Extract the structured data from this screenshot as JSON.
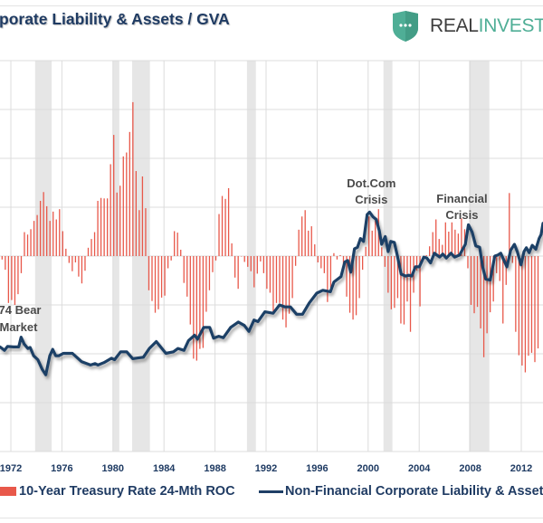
{
  "title": "porate Liability & Assets / GVA",
  "logo": {
    "icon": "shield-dots-icon",
    "word1": "REAL",
    "word2": "INVEST",
    "colors": {
      "shield": "#4fae96",
      "word1": "#3d3d3d",
      "word2": "#4fae96"
    }
  },
  "legend": {
    "bars_label": "10-Year Treasury Rate 24-Mth ROC",
    "line_label": "Non-Financial Corporate Liability & Assets /"
  },
  "chart_data": {
    "type": "bar+line",
    "title": "",
    "xlabel": "",
    "ylabel": "",
    "xlim": [
      1971.15,
      2013.7
    ],
    "ylim": [
      -4,
      4
    ],
    "y_tick_labels_shown": false,
    "grid": true,
    "legend_placement": "bottom",
    "x_ticks": [
      "1972",
      "1976",
      "1980",
      "1984",
      "1988",
      "1992",
      "1996",
      "2000",
      "2004",
      "2008",
      "2012"
    ],
    "colors": {
      "bars": "#e8584a",
      "line": "#1f3f66",
      "recession": "#e6e6e6",
      "grid": "#dcdcdc"
    },
    "recession_shading": [
      [
        1973.9,
        1975.2
      ],
      [
        1980.0,
        1980.5
      ],
      [
        1981.5,
        1982.9
      ],
      [
        1990.5,
        1991.2
      ],
      [
        2001.2,
        2001.9
      ],
      [
        2007.9,
        2009.5
      ]
    ],
    "annotations": [
      {
        "lines": [
          "'74 Bear",
          "Market"
        ],
        "year": 1972.6
      },
      {
        "lines": [
          "Dot.Com",
          "Crisis"
        ],
        "year": 2000.25
      },
      {
        "lines": [
          "Financial",
          "Crisis"
        ],
        "year": 2007.35
      }
    ],
    "series": [
      {
        "name": "10-Year Treasury Rate 24-Mth ROC",
        "type": "bar",
        "first_period": "1971-Q2",
        "frequency": "quarterly",
        "values": [
          -0.07,
          -0.28,
          -0.96,
          -0.9,
          -1.0,
          -0.78,
          -0.35,
          0.49,
          0.44,
          0.55,
          0.72,
          0.84,
          1.13,
          1.31,
          1.02,
          0.72,
          0.91,
          0.75,
          0.96,
          0.51,
          0.15,
          -0.14,
          -0.31,
          -0.13,
          -0.42,
          -0.56,
          -0.3,
          0.17,
          0.35,
          0.49,
          1.13,
          1.19,
          1.18,
          1.18,
          1.88,
          2.48,
          1.3,
          1.44,
          2.04,
          2.12,
          2.54,
          3.15,
          1.74,
          0.94,
          1.63,
          0.98,
          -0.7,
          -0.92,
          -1.16,
          -1.09,
          -0.85,
          -0.81,
          -0.25,
          -0.09,
          0.51,
          0.48,
          0.13,
          -0.55,
          -0.83,
          -1.4,
          -2.1,
          -2.14,
          -1.9,
          -1.88,
          -1.14,
          -0.7,
          -0.33,
          -0.09,
          0.86,
          1.23,
          1.17,
          1.39,
          0.26,
          -0.44,
          -0.67,
          0,
          -0.12,
          -0.22,
          -0.31,
          -0.64,
          -0.36,
          -0.11,
          -0.35,
          -0.67,
          -0.75,
          -1.19,
          -0.96,
          -0.96,
          -1.3,
          -1.46,
          -1.18,
          -0.86,
          -0.2,
          0.54,
          0.81,
          0.94,
          0.52,
          0.61,
          0.24,
          -0.13,
          -0.25,
          -0.35,
          -0.94,
          -0.65,
          0.06,
          -0.07,
          0.02,
          -0.19,
          -0.83,
          -1.16,
          -1.3,
          -1.21,
          -0.86,
          -0.28,
          0.19,
          0.81,
          0.52,
          0.73,
          0.96,
          0.18,
          -0.22,
          -0.75,
          -1.09,
          -1.06,
          -0.86,
          -1.38,
          -1.4,
          -0.93,
          -1.55,
          -0.75,
          -0.3,
          -1.03,
          -0.07,
          0.02,
          0.2,
          0.49,
          0.75,
          0.35,
          0.23,
          0.69,
          0.5,
          0.69,
          0.54,
          0.46,
          0.77,
          0.55,
          -0.25,
          -1.0,
          -1.17,
          -1.04,
          -1.48,
          -2.07,
          -1.58,
          -1.15,
          -0.93,
          -0.35,
          -0.51,
          -1.38,
          -0.59,
          1.29,
          -0.14,
          -1.55,
          -2.03,
          -2.24,
          -2.38,
          -2.04,
          -1.98,
          -2.17,
          -1.89
        ]
      },
      {
        "name": "Non-Financial Corporate Liability & Assets /",
        "type": "line",
        "points": [
          [
            1971.15,
            -1.86
          ],
          [
            1971.5,
            -1.93
          ],
          [
            1971.74,
            -1.85
          ],
          [
            1972.21,
            -1.86
          ],
          [
            1972.62,
            -1.86
          ],
          [
            1972.8,
            -1.66
          ],
          [
            1973.04,
            -1.8
          ],
          [
            1973.33,
            -1.89
          ],
          [
            1973.51,
            -1.87
          ],
          [
            1973.79,
            -2.04
          ],
          [
            1974.11,
            -2.12
          ],
          [
            1974.46,
            -2.32
          ],
          [
            1974.74,
            -2.43
          ],
          [
            1975.05,
            -2.04
          ],
          [
            1975.28,
            -1.91
          ],
          [
            1975.52,
            -2.04
          ],
          [
            1975.76,
            -2.04
          ],
          [
            1976.11,
            -1.99
          ],
          [
            1976.82,
            -1.99
          ],
          [
            1977.53,
            -2.16
          ],
          [
            1978.24,
            -2.23
          ],
          [
            1978.6,
            -2.2
          ],
          [
            1978.83,
            -2.23
          ],
          [
            1979.3,
            -2.18
          ],
          [
            1979.89,
            -2.09
          ],
          [
            1980.13,
            -2.12
          ],
          [
            1980.6,
            -1.96
          ],
          [
            1981.08,
            -1.96
          ],
          [
            1981.55,
            -2.1
          ],
          [
            1981.79,
            -2.09
          ],
          [
            1982.38,
            -2.07
          ],
          [
            1982.85,
            -1.89
          ],
          [
            1983.4,
            -1.75
          ],
          [
            1984.15,
            -1.99
          ],
          [
            1984.74,
            -1.96
          ],
          [
            1985.1,
            -1.89
          ],
          [
            1985.57,
            -1.93
          ],
          [
            1985.92,
            -1.73
          ],
          [
            1986.4,
            -1.62
          ],
          [
            1986.63,
            -1.7
          ],
          [
            1987.11,
            -1.46
          ],
          [
            1987.58,
            -1.46
          ],
          [
            1987.89,
            -1.68
          ],
          [
            1988.29,
            -1.64
          ],
          [
            1988.65,
            -1.67
          ],
          [
            1989.23,
            -1.46
          ],
          [
            1989.82,
            -1.35
          ],
          [
            1990.3,
            -1.42
          ],
          [
            1990.65,
            -1.54
          ],
          [
            1991.06,
            -1.31
          ],
          [
            1991.36,
            -1.34
          ],
          [
            1991.91,
            -1.14
          ],
          [
            1992.55,
            -1.17
          ],
          [
            1993.06,
            -1.0
          ],
          [
            1993.49,
            -1.04
          ],
          [
            1993.91,
            -1.04
          ],
          [
            1994.39,
            -1.19
          ],
          [
            1994.86,
            -1.19
          ],
          [
            1995.38,
            -0.96
          ],
          [
            1995.97,
            -0.76
          ],
          [
            1996.45,
            -0.7
          ],
          [
            1997.04,
            -0.73
          ],
          [
            1997.32,
            -0.53
          ],
          [
            1997.87,
            -0.42
          ],
          [
            1998.17,
            -0.12
          ],
          [
            1998.4,
            -0.09
          ],
          [
            1998.64,
            -0.33
          ],
          [
            1998.93,
            0.15
          ],
          [
            1999.16,
            0.18
          ],
          [
            1999.4,
            0.36
          ],
          [
            1999.64,
            0.3
          ],
          [
            1999.92,
            0.85
          ],
          [
            2000.11,
            0.9
          ],
          [
            2000.39,
            0.8
          ],
          [
            2000.63,
            0.75
          ],
          [
            2000.87,
            0.52
          ],
          [
            2001.06,
            0.24
          ],
          [
            2001.34,
            0.4
          ],
          [
            2001.57,
            0.09
          ],
          [
            2001.77,
            0.3
          ],
          [
            2002.05,
            0.28
          ],
          [
            2002.28,
            0.02
          ],
          [
            2002.59,
            -0.37
          ],
          [
            2002.94,
            -0.41
          ],
          [
            2003.18,
            -0.39
          ],
          [
            2003.42,
            -0.41
          ],
          [
            2003.7,
            -0.22
          ],
          [
            2004.01,
            -0.22
          ],
          [
            2004.36,
            -0.02
          ],
          [
            2004.6,
            -0.04
          ],
          [
            2004.89,
            -0.14
          ],
          [
            2005.19,
            0.06
          ],
          [
            2005.6,
            -0.02
          ],
          [
            2005.85,
            0.04
          ],
          [
            2006.13,
            -0.04
          ],
          [
            2006.49,
            0.06
          ],
          [
            2006.77,
            -0.02
          ],
          [
            2007.16,
            0.02
          ],
          [
            2007.62,
            0.24
          ],
          [
            2007.86,
            0.64
          ],
          [
            2008.15,
            0.49
          ],
          [
            2008.43,
            0.21
          ],
          [
            2008.74,
            0.18
          ],
          [
            2008.97,
            -0.22
          ],
          [
            2009.21,
            -0.47
          ],
          [
            2009.57,
            -0.49
          ],
          [
            2009.92,
            0.0
          ],
          [
            2010.16,
            0.02
          ],
          [
            2010.39,
            0.06
          ],
          [
            2010.87,
            -0.22
          ],
          [
            2011.17,
            0.12
          ],
          [
            2011.46,
            0.24
          ],
          [
            2011.69,
            0.09
          ],
          [
            2011.98,
            -0.18
          ],
          [
            2012.21,
            0.09
          ],
          [
            2012.4,
            0.17
          ],
          [
            2012.62,
            0.07
          ],
          [
            2012.86,
            0.22
          ],
          [
            2013.14,
            0.14
          ],
          [
            2013.4,
            0.36
          ],
          [
            2013.55,
            0.44
          ],
          [
            2013.7,
            0.67
          ]
        ]
      }
    ]
  }
}
